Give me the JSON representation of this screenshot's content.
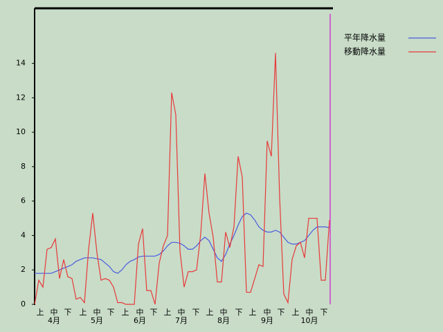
{
  "chart_data": {
    "type": "line",
    "x": [
      0,
      3,
      6,
      9,
      12,
      15,
      18,
      21,
      24,
      27,
      30,
      33,
      36,
      39,
      42,
      45,
      48,
      51,
      54,
      57,
      60,
      63,
      66,
      69,
      72,
      75,
      78,
      81,
      84,
      87,
      90,
      93,
      96,
      99,
      102,
      105,
      108,
      111,
      114,
      117,
      120,
      123,
      126,
      129,
      132,
      135,
      138,
      141,
      144,
      147,
      150,
      153,
      156,
      159,
      162,
      165,
      168,
      171,
      174,
      177,
      180,
      183,
      186,
      189,
      192,
      195,
      198,
      201,
      204,
      207,
      210,
      213
    ],
    "series": [
      {
        "name": "平年降水量",
        "color": "#4a5ae0",
        "values": [
          1.8,
          1.8,
          1.8,
          1.8,
          1.8,
          1.9,
          2.0,
          2.1,
          2.2,
          2.3,
          2.5,
          2.6,
          2.7,
          2.7,
          2.7,
          2.65,
          2.6,
          2.4,
          2.2,
          1.9,
          1.8,
          2.0,
          2.3,
          2.5,
          2.6,
          2.75,
          2.8,
          2.8,
          2.8,
          2.8,
          2.9,
          3.1,
          3.4,
          3.6,
          3.6,
          3.55,
          3.4,
          3.2,
          3.2,
          3.4,
          3.7,
          3.9,
          3.7,
          3.2,
          2.7,
          2.5,
          2.9,
          3.5,
          4.0,
          4.6,
          5.1,
          5.3,
          5.2,
          4.9,
          4.5,
          4.3,
          4.2,
          4.2,
          4.3,
          4.2,
          3.9,
          3.6,
          3.5,
          3.5,
          3.6,
          3.7,
          4.0,
          4.3,
          4.5,
          4.5,
          4.5,
          4.45
        ]
      },
      {
        "name": "移動降水量",
        "color": "#e83838",
        "values": [
          0,
          1.4,
          1.0,
          3.2,
          3.3,
          3.8,
          1.5,
          2.6,
          1.6,
          1.5,
          0.3,
          0.4,
          0.1,
          3.2,
          5.3,
          3.0,
          1.4,
          1.5,
          1.4,
          1.0,
          0.1,
          0.1,
          0,
          0,
          0,
          3.5,
          4.4,
          0.8,
          0.8,
          0,
          2.4,
          3.4,
          4.0,
          12.3,
          11.0,
          3.1,
          1.0,
          1.9,
          1.9,
          2.0,
          4.1,
          7.6,
          5.3,
          3.9,
          1.3,
          1.3,
          4.2,
          3.3,
          4.5,
          8.6,
          7.4,
          0.7,
          0.7,
          1.5,
          2.3,
          2.2,
          9.5,
          8.6,
          14.6,
          6.2,
          0.6,
          0.1,
          2.6,
          3.4,
          3.6,
          2.7,
          5.0,
          5.0,
          5.0,
          1.4,
          1.4,
          4.9
        ]
      }
    ],
    "xlim": [
      0,
      214
    ],
    "ylim": [
      0,
      17.2
    ],
    "yticks": [
      0,
      2,
      4,
      6,
      8,
      10,
      12,
      14
    ],
    "xticks": [
      {
        "value": 4,
        "label": "上"
      },
      {
        "value": 14,
        "label": "中"
      },
      {
        "value": 24,
        "label": "下"
      },
      {
        "value": 35,
        "label": "上"
      },
      {
        "value": 45,
        "label": "中"
      },
      {
        "value": 55,
        "label": "下"
      },
      {
        "value": 65.5,
        "label": "上"
      },
      {
        "value": 76,
        "label": "中"
      },
      {
        "value": 86,
        "label": "下"
      },
      {
        "value": 96,
        "label": "上"
      },
      {
        "value": 106,
        "label": "中"
      },
      {
        "value": 116.5,
        "label": "下"
      },
      {
        "value": 126.5,
        "label": "上"
      },
      {
        "value": 136.5,
        "label": "中"
      },
      {
        "value": 147.5,
        "label": "下"
      },
      {
        "value": 157.5,
        "label": "上"
      },
      {
        "value": 168,
        "label": "中"
      },
      {
        "value": 178,
        "label": "下"
      },
      {
        "value": 188.5,
        "label": "上"
      },
      {
        "value": 198.5,
        "label": "中"
      },
      {
        "value": 209,
        "label": "下"
      }
    ],
    "month_labels": [
      {
        "value": 14,
        "label": "4月"
      },
      {
        "value": 45,
        "label": "5月"
      },
      {
        "value": 76,
        "label": "6月"
      },
      {
        "value": 106,
        "label": "7月"
      },
      {
        "value": 136.5,
        "label": "8月"
      },
      {
        "value": 168,
        "label": "9月"
      },
      {
        "value": 198.5,
        "label": "10月"
      }
    ],
    "today_line": {
      "x": 213.5,
      "color": "#cc66cc"
    }
  }
}
